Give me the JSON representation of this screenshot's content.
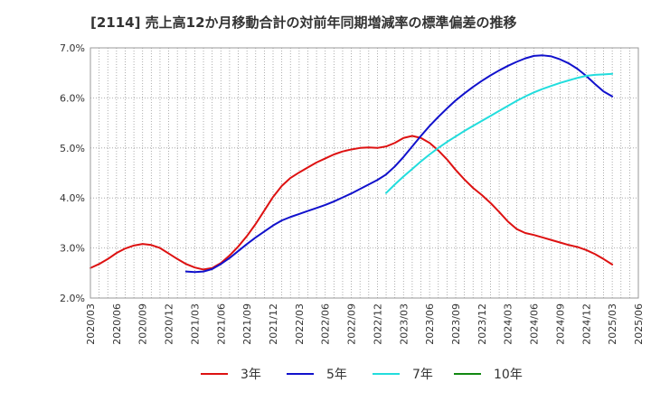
{
  "chart_data": {
    "type": "line",
    "title": "[2114]  売上高12か月移動合計の対前年同期増減率の標準偏差の推移",
    "xlabel": "",
    "ylabel": "",
    "ylim": [
      2.0,
      7.0
    ],
    "y_ticks": [
      "2.0%",
      "3.0%",
      "4.0%",
      "5.0%",
      "6.0%",
      "7.0%"
    ],
    "x_ticks": [
      "2020/03",
      "2020/06",
      "2020/09",
      "2020/12",
      "2021/03",
      "2021/06",
      "2021/09",
      "2021/12",
      "2022/03",
      "2022/06",
      "2022/09",
      "2022/12",
      "2023/03",
      "2023/06",
      "2023/09",
      "2023/12",
      "2024/03",
      "2024/06",
      "2024/09",
      "2024/12",
      "2025/03",
      "2025/06"
    ],
    "grid": true,
    "legend_position": "bottom",
    "series": [
      {
        "name": "3年",
        "color": "#dd1111",
        "points": [
          [
            "2020/03",
            2.6
          ],
          [
            "2020/04",
            2.68
          ],
          [
            "2020/05",
            2.78
          ],
          [
            "2020/06",
            2.9
          ],
          [
            "2020/07",
            2.99
          ],
          [
            "2020/08",
            3.05
          ],
          [
            "2020/09",
            3.08
          ],
          [
            "2020/10",
            3.06
          ],
          [
            "2020/11",
            3.0
          ],
          [
            "2020/12",
            2.89
          ],
          [
            "2021/01",
            2.78
          ],
          [
            "2021/02",
            2.68
          ],
          [
            "2021/03",
            2.61
          ],
          [
            "2021/04",
            2.57
          ],
          [
            "2021/05",
            2.6
          ],
          [
            "2021/06",
            2.7
          ],
          [
            "2021/07",
            2.85
          ],
          [
            "2021/08",
            3.03
          ],
          [
            "2021/09",
            3.24
          ],
          [
            "2021/10",
            3.48
          ],
          [
            "2021/11",
            3.75
          ],
          [
            "2021/12",
            4.02
          ],
          [
            "2022/01",
            4.24
          ],
          [
            "2022/02",
            4.4
          ],
          [
            "2022/03",
            4.51
          ],
          [
            "2022/04",
            4.61
          ],
          [
            "2022/05",
            4.71
          ],
          [
            "2022/06",
            4.79
          ],
          [
            "2022/07",
            4.87
          ],
          [
            "2022/08",
            4.93
          ],
          [
            "2022/09",
            4.97
          ],
          [
            "2022/10",
            5.0
          ],
          [
            "2022/11",
            5.01
          ],
          [
            "2022/12",
            5.0
          ],
          [
            "2023/01",
            5.03
          ],
          [
            "2023/02",
            5.1
          ],
          [
            "2023/03",
            5.2
          ],
          [
            "2023/04",
            5.24
          ],
          [
            "2023/05",
            5.2
          ],
          [
            "2023/06",
            5.1
          ],
          [
            "2023/07",
            4.95
          ],
          [
            "2023/08",
            4.77
          ],
          [
            "2023/09",
            4.56
          ],
          [
            "2023/10",
            4.37
          ],
          [
            "2023/11",
            4.2
          ],
          [
            "2023/12",
            4.06
          ],
          [
            "2024/01",
            3.9
          ],
          [
            "2024/02",
            3.72
          ],
          [
            "2024/03",
            3.53
          ],
          [
            "2024/04",
            3.38
          ],
          [
            "2024/05",
            3.3
          ],
          [
            "2024/06",
            3.26
          ],
          [
            "2024/07",
            3.21
          ],
          [
            "2024/08",
            3.16
          ],
          [
            "2024/09",
            3.11
          ],
          [
            "2024/10",
            3.06
          ],
          [
            "2024/11",
            3.02
          ],
          [
            "2024/12",
            2.96
          ],
          [
            "2025/01",
            2.88
          ],
          [
            "2025/02",
            2.78
          ],
          [
            "2025/03",
            2.67
          ]
        ]
      },
      {
        "name": "5年",
        "color": "#1111cc",
        "points": [
          [
            "2021/02",
            2.53
          ],
          [
            "2021/03",
            2.52
          ],
          [
            "2021/04",
            2.53
          ],
          [
            "2021/05",
            2.58
          ],
          [
            "2021/06",
            2.68
          ],
          [
            "2021/07",
            2.8
          ],
          [
            "2021/08",
            2.94
          ],
          [
            "2021/09",
            3.08
          ],
          [
            "2021/10",
            3.21
          ],
          [
            "2021/11",
            3.33
          ],
          [
            "2021/12",
            3.45
          ],
          [
            "2022/01",
            3.55
          ],
          [
            "2022/02",
            3.62
          ],
          [
            "2022/03",
            3.68
          ],
          [
            "2022/04",
            3.74
          ],
          [
            "2022/05",
            3.8
          ],
          [
            "2022/06",
            3.86
          ],
          [
            "2022/07",
            3.93
          ],
          [
            "2022/08",
            4.01
          ],
          [
            "2022/09",
            4.09
          ],
          [
            "2022/10",
            4.18
          ],
          [
            "2022/11",
            4.27
          ],
          [
            "2022/12",
            4.36
          ],
          [
            "2023/01",
            4.47
          ],
          [
            "2023/02",
            4.63
          ],
          [
            "2023/03",
            4.82
          ],
          [
            "2023/04",
            5.03
          ],
          [
            "2023/05",
            5.24
          ],
          [
            "2023/06",
            5.44
          ],
          [
            "2023/07",
            5.62
          ],
          [
            "2023/08",
            5.79
          ],
          [
            "2023/09",
            5.95
          ],
          [
            "2023/10",
            6.09
          ],
          [
            "2023/11",
            6.22
          ],
          [
            "2023/12",
            6.34
          ],
          [
            "2024/01",
            6.45
          ],
          [
            "2024/02",
            6.55
          ],
          [
            "2024/03",
            6.64
          ],
          [
            "2024/04",
            6.72
          ],
          [
            "2024/05",
            6.79
          ],
          [
            "2024/06",
            6.84
          ],
          [
            "2024/07",
            6.85
          ],
          [
            "2024/08",
            6.83
          ],
          [
            "2024/09",
            6.77
          ],
          [
            "2024/10",
            6.69
          ],
          [
            "2024/11",
            6.58
          ],
          [
            "2024/12",
            6.44
          ],
          [
            "2025/01",
            6.28
          ],
          [
            "2025/02",
            6.13
          ],
          [
            "2025/03",
            6.03
          ]
        ]
      },
      {
        "name": "7年",
        "color": "#22dddd",
        "points": [
          [
            "2023/01",
            4.1
          ],
          [
            "2023/02",
            4.27
          ],
          [
            "2023/03",
            4.43
          ],
          [
            "2023/04",
            4.58
          ],
          [
            "2023/05",
            4.73
          ],
          [
            "2023/06",
            4.87
          ],
          [
            "2023/07",
            5.0
          ],
          [
            "2023/08",
            5.12
          ],
          [
            "2023/09",
            5.23
          ],
          [
            "2023/10",
            5.34
          ],
          [
            "2023/11",
            5.44
          ],
          [
            "2023/12",
            5.54
          ],
          [
            "2024/01",
            5.64
          ],
          [
            "2024/02",
            5.74
          ],
          [
            "2024/03",
            5.84
          ],
          [
            "2024/04",
            5.94
          ],
          [
            "2024/05",
            6.03
          ],
          [
            "2024/06",
            6.11
          ],
          [
            "2024/07",
            6.18
          ],
          [
            "2024/08",
            6.24
          ],
          [
            "2024/09",
            6.3
          ],
          [
            "2024/10",
            6.35
          ],
          [
            "2024/11",
            6.4
          ],
          [
            "2024/12",
            6.44
          ],
          [
            "2025/01",
            6.46
          ],
          [
            "2025/02",
            6.47
          ],
          [
            "2025/03",
            6.48
          ]
        ]
      },
      {
        "name": "10年",
        "color": "#118811",
        "points": []
      }
    ]
  }
}
